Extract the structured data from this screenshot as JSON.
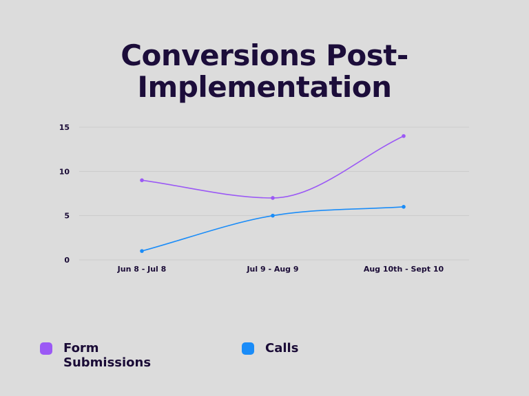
{
  "chart_data": {
    "type": "line",
    "title": "Conversions Post-Implementation",
    "xlabel": "",
    "ylabel": "",
    "categories": [
      "Jun 8 - Jul 8",
      "Jul 9 - Aug 9",
      "Aug 10th - Sept 10"
    ],
    "ylim": [
      0,
      15
    ],
    "yticks": [
      0,
      5,
      10,
      15
    ],
    "grid": true,
    "legend_position": "bottom",
    "series": [
      {
        "name": "Form Submissions",
        "values": [
          9,
          7,
          14
        ],
        "color": "#9b59f5"
      },
      {
        "name": "Calls",
        "values": [
          1,
          5,
          6
        ],
        "color": "#1a8cf8"
      }
    ]
  }
}
